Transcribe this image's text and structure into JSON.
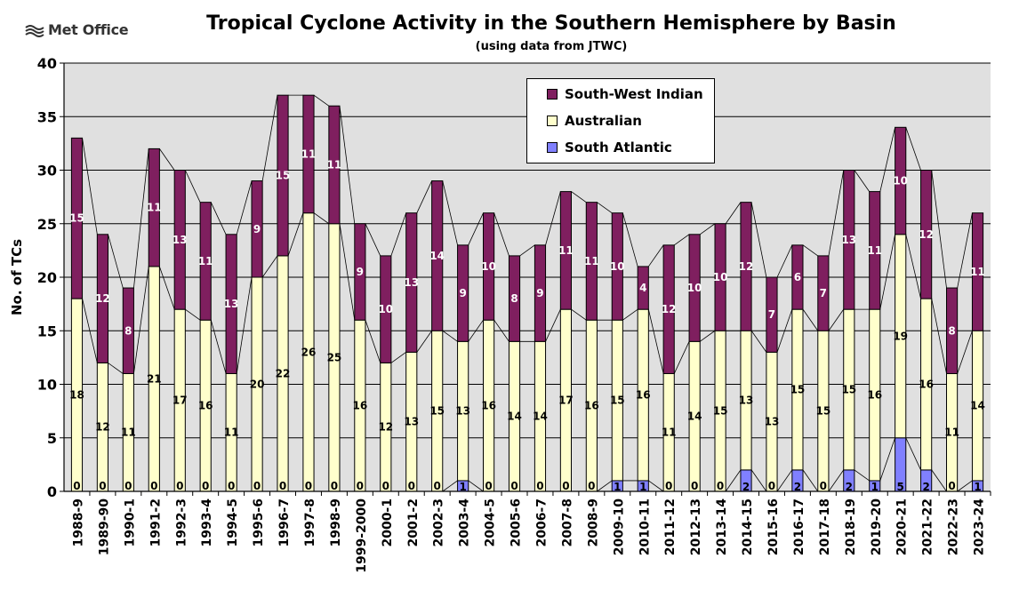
{
  "logo": {
    "text": "Met Office"
  },
  "chart_data": {
    "type": "bar",
    "stacked": true,
    "title": "Tropical Cyclone Activity in the Southern Hemisphere by Basin",
    "subtitle": "(using data from JTWC)",
    "ylabel": "No. of TCs",
    "xlabel": "",
    "ylim": [
      0,
      40
    ],
    "yticks": [
      0,
      5,
      10,
      15,
      20,
      25,
      30,
      35,
      40
    ],
    "grid": true,
    "legend_position": "top-center",
    "categories": [
      "1988-9",
      "1989-90",
      "1990-1",
      "1991-2",
      "1992-3",
      "1993-4",
      "1994-5",
      "1995-6",
      "1996-7",
      "1997-8",
      "1998-9",
      "1999-2000",
      "2000-1",
      "2001-2",
      "2002-3",
      "2003-4",
      "2004-5",
      "2005-6",
      "2006-7",
      "2007-8",
      "2008-9",
      "2009-10",
      "2010-11",
      "2011-12",
      "2012-13",
      "2013-14",
      "2014-15",
      "2015-16",
      "2016-17",
      "2017-18",
      "2018-19",
      "2019-20",
      "2020-21",
      "2021-22",
      "2022-23",
      "2023-24"
    ],
    "series": [
      {
        "name": "South Atlantic",
        "color": "#8080ff",
        "values": [
          0,
          0,
          0,
          0,
          0,
          0,
          0,
          0,
          0,
          0,
          0,
          0,
          0,
          0,
          0,
          1,
          0,
          0,
          0,
          0,
          0,
          1,
          1,
          0,
          0,
          0,
          2,
          0,
          2,
          0,
          2,
          1,
          5,
          2,
          0,
          1
        ]
      },
      {
        "name": "Australian",
        "color": "#ffffcc",
        "values": [
          18,
          12,
          11,
          21,
          17,
          16,
          11,
          20,
          22,
          26,
          25,
          16,
          12,
          13,
          15,
          13,
          16,
          14,
          14,
          17,
          16,
          15,
          16,
          11,
          14,
          15,
          13,
          13,
          15,
          15,
          15,
          16,
          19,
          16,
          11,
          14
        ]
      },
      {
        "name": "South-West Indian",
        "color": "#7f1f5f",
        "values": [
          15,
          12,
          8,
          11,
          13,
          11,
          13,
          9,
          15,
          11,
          11,
          9,
          10,
          13,
          14,
          9,
          10,
          8,
          9,
          11,
          11,
          10,
          4,
          12,
          10,
          10,
          12,
          7,
          6,
          7,
          13,
          11,
          10,
          12,
          8,
          11
        ]
      }
    ],
    "legend_order": [
      "South-West Indian",
      "Australian",
      "South Atlantic"
    ]
  }
}
